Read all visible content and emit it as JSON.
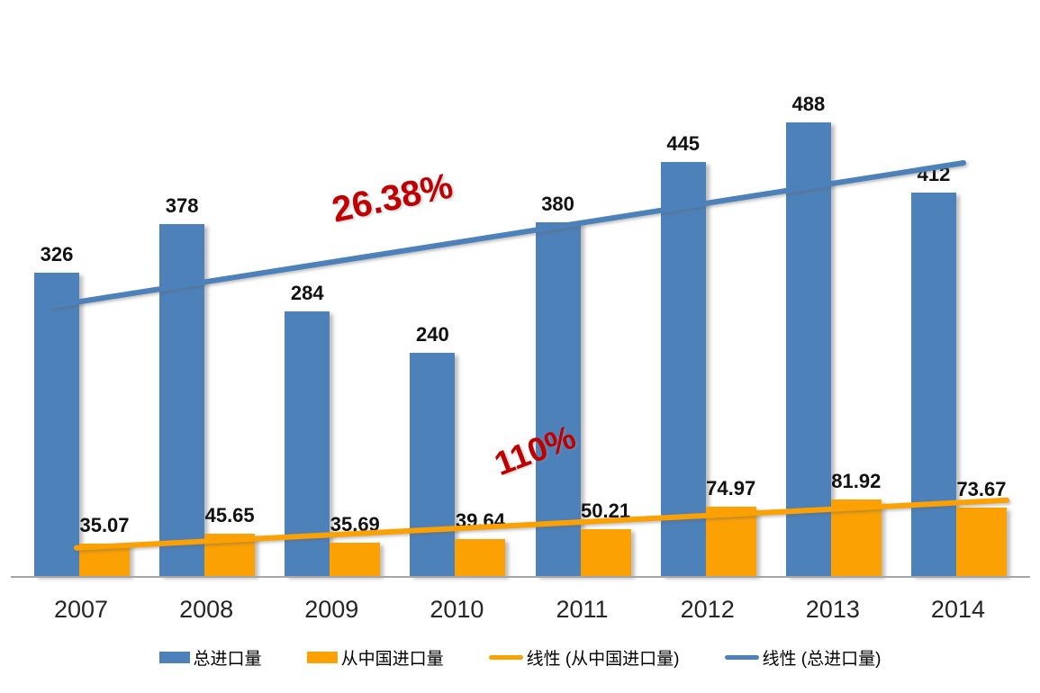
{
  "chart_data": {
    "type": "bar",
    "categories": [
      "2007",
      "2008",
      "2009",
      "2010",
      "2011",
      "2012",
      "2013",
      "2014"
    ],
    "series": [
      {
        "name": "总进口量",
        "type": "bar",
        "color": "#4D81BA",
        "values": [
          326,
          378,
          284,
          240,
          380,
          445,
          488,
          412
        ]
      },
      {
        "name": "从中国进口量",
        "type": "bar",
        "color": "#FCA104",
        "values": [
          35.07,
          45.65,
          35.69,
          39.64,
          50.21,
          74.97,
          81.92,
          73.67
        ]
      }
    ],
    "trendlines": [
      {
        "name": "线性 (从中国进口量)",
        "series_index": 1,
        "color": "#FCA104"
      },
      {
        "name": "线性 (总进口量)",
        "series_index": 0,
        "color": "#4D81BA"
      }
    ],
    "annotations": [
      {
        "text": "26.38%",
        "color": "#C00000",
        "refers_to": "总进口量 growth 2007-2014"
      },
      {
        "text": "110%",
        "color": "#C00000",
        "refers_to": "从中国进口量 growth 2007-2014"
      }
    ],
    "legend": [
      {
        "label": "总进口量",
        "swatch": "bar",
        "color": "#4D81BA"
      },
      {
        "label": "从中国进口量",
        "swatch": "bar",
        "color": "#FCA104"
      },
      {
        "label": "线性 (从中国进口量)",
        "swatch": "line",
        "color": "#FCA104"
      },
      {
        "label": "线性 (总进口量)",
        "swatch": "line",
        "color": "#4D81BA"
      }
    ],
    "legend_position": "bottom",
    "grid": false,
    "title": "",
    "xlabel": "",
    "ylabel": "",
    "ylim": [
      0,
      600
    ],
    "axis_line_color": "#A6A6A6",
    "label_color": "#111111"
  }
}
